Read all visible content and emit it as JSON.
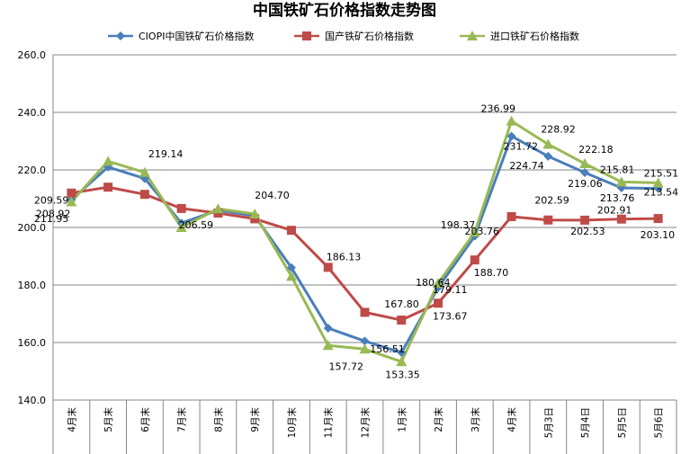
{
  "chart_data": {
    "type": "line",
    "title": "中国铁矿石价格指数走势图",
    "categories": [
      "4月末",
      "5月末",
      "6月末",
      "7月末",
      "8月末",
      "9月末",
      "10月末",
      "11月末",
      "12月末",
      "1月末",
      "2月末",
      "3月末",
      "4月末",
      "5月3日",
      "5月4日",
      "5月5日",
      "5月6日"
    ],
    "ylim": [
      140,
      260
    ],
    "yticks": [
      "140.0",
      "160.0",
      "180.0",
      "200.0",
      "220.0",
      "240.0",
      "260.0"
    ],
    "grid": "horizontal",
    "legend_position": "top",
    "series": [
      {
        "name": "CIOPI中国铁矿石价格指数",
        "color": "#4A7EBB",
        "marker": "diamond",
        "values": [
          209.59,
          221.0,
          217.0,
          201.5,
          206.0,
          204.0,
          186.0,
          165.0,
          160.5,
          156.51,
          179.11,
          197.0,
          231.72,
          224.74,
          219.06,
          213.76,
          213.54
        ]
      },
      {
        "name": "国产铁矿石价格指数",
        "color": "#BE4B48",
        "marker": "square",
        "values": [
          211.95,
          214.0,
          211.5,
          206.59,
          205.0,
          203.0,
          199.0,
          186.13,
          170.5,
          167.8,
          173.67,
          188.7,
          203.76,
          202.59,
          202.53,
          202.91,
          203.1
        ]
      },
      {
        "name": "进口铁矿石价格指数",
        "color": "#98B954",
        "marker": "triangle",
        "values": [
          208.92,
          223.0,
          219.14,
          200.0,
          206.5,
          204.7,
          183.0,
          159.0,
          157.72,
          153.35,
          180.64,
          198.37,
          236.99,
          228.92,
          222.18,
          215.81,
          215.51
        ]
      }
    ],
    "data_labels": [
      {
        "text": "209.59",
        "series": 0,
        "index": 0
      },
      {
        "text": "211.95",
        "series": 1,
        "index": 0
      },
      {
        "text": "208.92",
        "series": 2,
        "index": 0
      },
      {
        "text": "219.14",
        "series": 2,
        "index": 2
      },
      {
        "text": "206.59",
        "series": 1,
        "index": 3
      },
      {
        "text": "204.70",
        "series": 2,
        "index": 5
      },
      {
        "text": "186.13",
        "series": 1,
        "index": 7
      },
      {
        "text": "157.72",
        "series": 2,
        "index": 8
      },
      {
        "text": "156.51",
        "series": 0,
        "index": 9
      },
      {
        "text": "167.80",
        "series": 1,
        "index": 9
      },
      {
        "text": "153.35",
        "series": 2,
        "index": 9
      },
      {
        "text": "180.64",
        "series": 2,
        "index": 10
      },
      {
        "text": "179.11",
        "series": 0,
        "index": 10
      },
      {
        "text": "173.67",
        "series": 1,
        "index": 10
      },
      {
        "text": "198.37",
        "series": 2,
        "index": 11
      },
      {
        "text": "188.70",
        "series": 1,
        "index": 11
      },
      {
        "text": "236.99",
        "series": 2,
        "index": 12
      },
      {
        "text": "231.72",
        "series": 0,
        "index": 12
      },
      {
        "text": "203.76",
        "series": 1,
        "index": 12
      },
      {
        "text": "228.92",
        "series": 2,
        "index": 13
      },
      {
        "text": "224.74",
        "series": 0,
        "index": 13
      },
      {
        "text": "202.59",
        "series": 1,
        "index": 13
      },
      {
        "text": "222.18",
        "series": 2,
        "index": 14
      },
      {
        "text": "219.06",
        "series": 0,
        "index": 14
      },
      {
        "text": "202.53",
        "series": 1,
        "index": 14
      },
      {
        "text": "215.81",
        "series": 2,
        "index": 15
      },
      {
        "text": "213.76",
        "series": 0,
        "index": 15
      },
      {
        "text": "202.91",
        "series": 1,
        "index": 15
      },
      {
        "text": "215.51",
        "series": 2,
        "index": 16
      },
      {
        "text": "213.54",
        "series": 0,
        "index": 16
      },
      {
        "text": "203.10",
        "series": 1,
        "index": 16
      }
    ]
  }
}
